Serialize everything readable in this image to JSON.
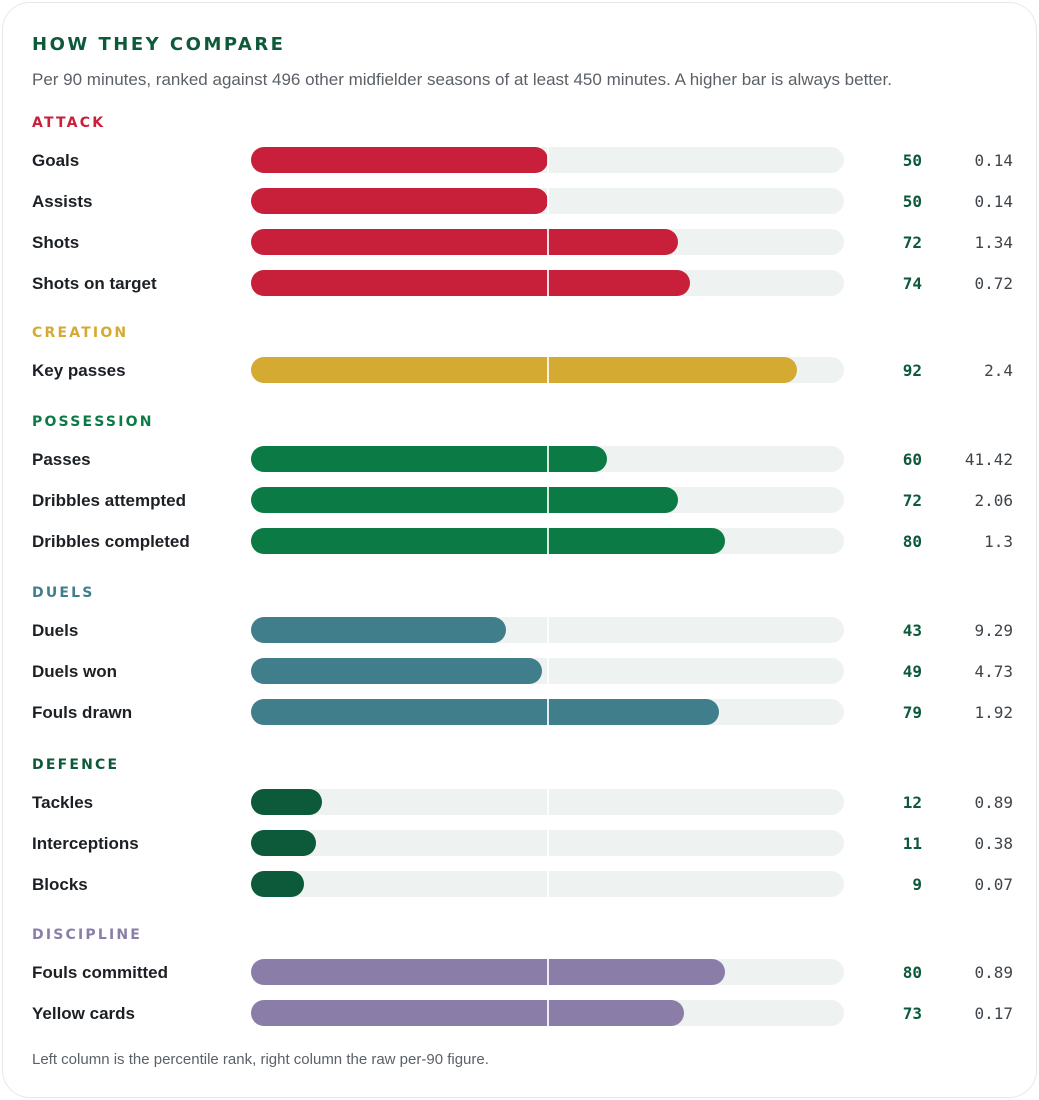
{
  "title": "HOW THEY COMPARE",
  "subtitle": "Per 90 minutes, ranked against 496 other midfielder seasons of at least 450 minutes. A higher bar is always better.",
  "footnote": "Left column is the percentile rank, right column the raw per-90 figure.",
  "chart_data": {
    "type": "bar",
    "orientation": "horizontal",
    "xlim": [
      0,
      100
    ],
    "reference_line": 50,
    "groups": [
      {
        "name": "ATTACK",
        "color": "#c8203a",
        "items": [
          {
            "label": "Goals",
            "percentile": 50,
            "raw": "0.14"
          },
          {
            "label": "Assists",
            "percentile": 50,
            "raw": "0.14"
          },
          {
            "label": "Shots",
            "percentile": 72,
            "raw": "1.34"
          },
          {
            "label": "Shots on target",
            "percentile": 74,
            "raw": "0.72"
          }
        ]
      },
      {
        "name": "CREATION",
        "color": "#d4aa33",
        "items": [
          {
            "label": "Key passes",
            "percentile": 92,
            "raw": "2.4"
          }
        ]
      },
      {
        "name": "POSSESSION",
        "color": "#0b7a45",
        "items": [
          {
            "label": "Passes",
            "percentile": 60,
            "raw": "41.42"
          },
          {
            "label": "Dribbles attempted",
            "percentile": 72,
            "raw": "2.06"
          },
          {
            "label": "Dribbles completed",
            "percentile": 80,
            "raw": "1.3"
          }
        ]
      },
      {
        "name": "DUELS",
        "color": "#417e8c",
        "items": [
          {
            "label": "Duels",
            "percentile": 43,
            "raw": "9.29"
          },
          {
            "label": "Duels won",
            "percentile": 49,
            "raw": "4.73"
          },
          {
            "label": "Fouls drawn",
            "percentile": 79,
            "raw": "1.92"
          }
        ]
      },
      {
        "name": "DEFENCE",
        "color": "#0c5a3a",
        "items": [
          {
            "label": "Tackles",
            "percentile": 12,
            "raw": "0.89"
          },
          {
            "label": "Interceptions",
            "percentile": 11,
            "raw": "0.38"
          },
          {
            "label": "Blocks",
            "percentile": 9,
            "raw": "0.07"
          }
        ]
      },
      {
        "name": "DISCIPLINE",
        "color": "#8a7ea8",
        "items": [
          {
            "label": "Fouls committed",
            "percentile": 80,
            "raw": "0.89"
          },
          {
            "label": "Yellow cards",
            "percentile": 73,
            "raw": "0.17"
          }
        ]
      }
    ]
  }
}
